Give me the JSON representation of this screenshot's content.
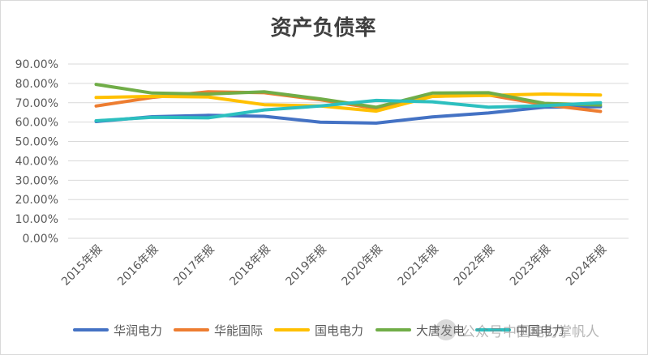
{
  "chart_data": {
    "type": "line",
    "title": "资产负债率",
    "categories": [
      "2015年报",
      "2016年报",
      "2017年报",
      "2018年报",
      "2019年报",
      "2020年报",
      "2021年报",
      "2022年报",
      "2023年报",
      "2024年报"
    ],
    "ylim": [
      0,
      0.9
    ],
    "yticks": [
      "0.00%",
      "10.00%",
      "20.00%",
      "30.00%",
      "40.00%",
      "50.00%",
      "60.00%",
      "70.00%",
      "80.00%",
      "90.00%"
    ],
    "grid": true,
    "legend_position": "bottom",
    "series": [
      {
        "name": "华润电力",
        "color": "#4472C4",
        "values": [
          0.603,
          0.628,
          0.635,
          0.63,
          0.6,
          0.595,
          0.627,
          0.647,
          0.677,
          0.68
        ]
      },
      {
        "name": "华能国际",
        "color": "#ED7D31",
        "values": [
          0.683,
          0.727,
          0.757,
          0.752,
          0.715,
          0.67,
          0.733,
          0.74,
          0.69,
          0.655
        ]
      },
      {
        "name": "国电电力",
        "color": "#FFC000",
        "values": [
          0.727,
          0.733,
          0.73,
          0.69,
          0.683,
          0.657,
          0.733,
          0.738,
          0.745,
          0.74
        ]
      },
      {
        "name": "大唐发电",
        "color": "#70AD47",
        "values": [
          0.795,
          0.75,
          0.745,
          0.757,
          0.72,
          0.677,
          0.75,
          0.752,
          0.697,
          0.688
        ]
      },
      {
        "name": "中国电力",
        "color": "#2CBFBF",
        "values": [
          0.607,
          0.625,
          0.622,
          0.663,
          0.683,
          0.712,
          0.705,
          0.677,
          0.685,
          0.7
        ]
      }
    ]
  },
  "watermark": "公众号中国电力掌帆人"
}
